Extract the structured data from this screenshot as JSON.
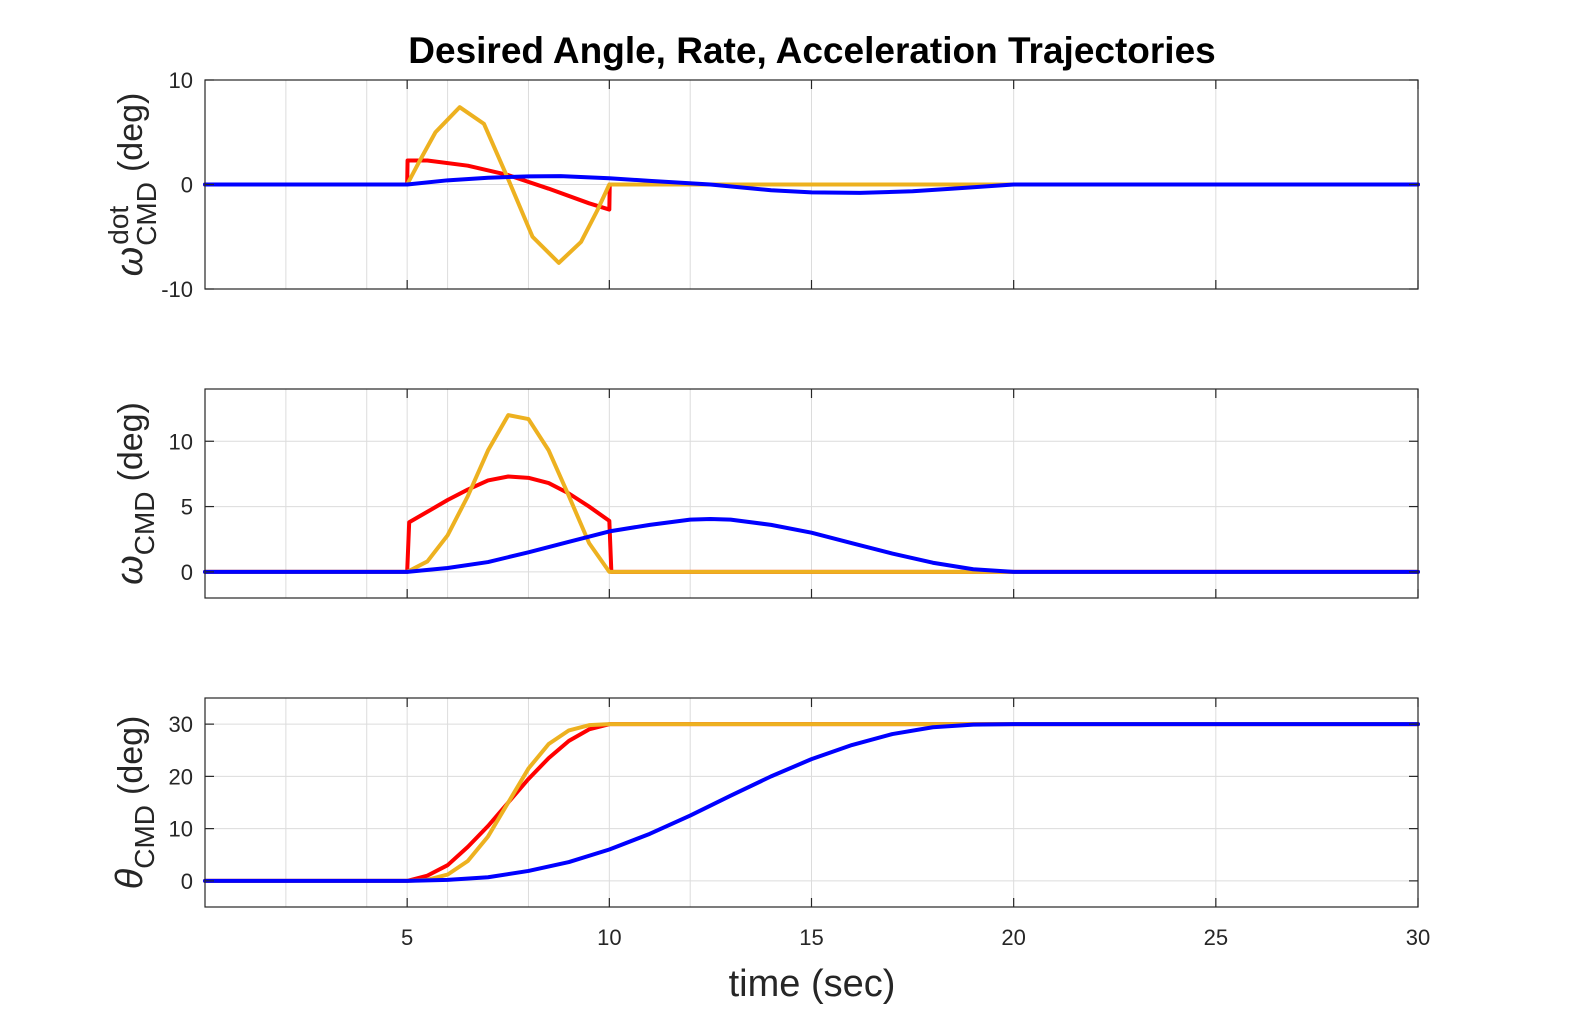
{
  "chart_data": {
    "title": "Desired Angle, Rate, Acceleration Trajectories",
    "xlabel": "time (sec)",
    "xlim": [
      0,
      30
    ],
    "xticks": [
      5,
      10,
      15,
      20,
      25,
      30
    ],
    "colors": {
      "series1": "#ff0000",
      "series2": "#edb120",
      "series3": "#0000ff"
    },
    "panels": [
      {
        "type": "line",
        "ylabel_main": "ω",
        "ylabel_sup": "dot",
        "ylabel_sub": "CMD",
        "ylabel_unit": "(deg)",
        "ylim": [
          -10,
          10
        ],
        "yticks": [
          10,
          0,
          -10
        ],
        "grid": true,
        "series": [
          {
            "name": "series1",
            "points": [
              [
                0,
                0
              ],
              [
                5,
                0
              ],
              [
                5.01,
                2.3
              ],
              [
                5.5,
                2.3
              ],
              [
                6.5,
                1.8
              ],
              [
                7.5,
                0.9
              ],
              [
                8.5,
                -0.4
              ],
              [
                9.5,
                -1.8
              ],
              [
                10,
                -2.4
              ],
              [
                10.01,
                0
              ],
              [
                30,
                0
              ]
            ]
          },
          {
            "name": "series2",
            "points": [
              [
                0,
                0
              ],
              [
                5,
                0
              ],
              [
                5.3,
                2.2
              ],
              [
                5.7,
                5.0
              ],
              [
                6.3,
                7.4
              ],
              [
                6.9,
                5.8
              ],
              [
                7.5,
                0.5
              ],
              [
                8.1,
                -5.0
              ],
              [
                8.75,
                -7.5
              ],
              [
                9.3,
                -5.5
              ],
              [
                9.7,
                -2.5
              ],
              [
                10,
                0
              ],
              [
                30,
                0
              ]
            ]
          },
          {
            "name": "series3",
            "points": [
              [
                0,
                0
              ],
              [
                5,
                0
              ],
              [
                6,
                0.4
              ],
              [
                7,
                0.65
              ],
              [
                8,
                0.78
              ],
              [
                8.8,
                0.8
              ],
              [
                10,
                0.6
              ],
              [
                11,
                0.35
              ],
              [
                12.5,
                0
              ],
              [
                14,
                -0.55
              ],
              [
                15,
                -0.75
              ],
              [
                16.2,
                -0.8
              ],
              [
                17.5,
                -0.65
              ],
              [
                18.5,
                -0.4
              ],
              [
                20,
                0
              ],
              [
                30,
                0
              ]
            ]
          }
        ]
      },
      {
        "type": "line",
        "ylabel_main": "ω",
        "ylabel_sup": "",
        "ylabel_sub": "CMD",
        "ylabel_unit": "(deg)",
        "ylim": [
          -2,
          14
        ],
        "yticks": [
          10,
          5,
          0
        ],
        "grid": true,
        "series": [
          {
            "name": "series1",
            "points": [
              [
                0,
                0
              ],
              [
                5,
                0
              ],
              [
                5.05,
                3.8
              ],
              [
                5.5,
                4.6
              ],
              [
                6,
                5.5
              ],
              [
                6.5,
                6.3
              ],
              [
                7,
                7.0
              ],
              [
                7.5,
                7.3
              ],
              [
                8,
                7.2
              ],
              [
                8.5,
                6.8
              ],
              [
                9,
                6.0
              ],
              [
                9.5,
                5.0
              ],
              [
                10,
                3.9
              ],
              [
                10.05,
                0
              ],
              [
                30,
                0
              ]
            ]
          },
          {
            "name": "series2",
            "points": [
              [
                0,
                0
              ],
              [
                5,
                0
              ],
              [
                5.5,
                0.8
              ],
              [
                6,
                2.8
              ],
              [
                6.5,
                5.8
              ],
              [
                7,
                9.3
              ],
              [
                7.5,
                12.0
              ],
              [
                8,
                11.7
              ],
              [
                8.5,
                9.3
              ],
              [
                9,
                5.8
              ],
              [
                9.5,
                2.2
              ],
              [
                10,
                0
              ],
              [
                30,
                0
              ]
            ]
          },
          {
            "name": "series3",
            "points": [
              [
                0,
                0
              ],
              [
                5,
                0
              ],
              [
                6,
                0.3
              ],
              [
                7,
                0.75
              ],
              [
                8,
                1.5
              ],
              [
                9,
                2.3
              ],
              [
                10,
                3.1
              ],
              [
                11,
                3.6
              ],
              [
                12,
                4.0
              ],
              [
                12.5,
                4.05
              ],
              [
                13,
                4.0
              ],
              [
                14,
                3.6
              ],
              [
                15,
                3.0
              ],
              [
                16,
                2.2
              ],
              [
                17,
                1.4
              ],
              [
                18,
                0.7
              ],
              [
                19,
                0.2
              ],
              [
                20,
                0
              ],
              [
                30,
                0
              ]
            ]
          }
        ]
      },
      {
        "type": "line",
        "ylabel_main": "θ",
        "ylabel_sup": "",
        "ylabel_sub": "CMD",
        "ylabel_unit": "(deg)",
        "ylim": [
          -5,
          35
        ],
        "yticks": [
          30,
          20,
          10,
          0
        ],
        "grid": true,
        "series": [
          {
            "name": "series1",
            "points": [
              [
                0,
                0
              ],
              [
                5,
                0
              ],
              [
                5.5,
                1.0
              ],
              [
                6,
                3.0
              ],
              [
                6.5,
                6.5
              ],
              [
                7,
                10.5
              ],
              [
                7.5,
                15.0
              ],
              [
                8,
                19.5
              ],
              [
                8.5,
                23.5
              ],
              [
                9,
                26.8
              ],
              [
                9.5,
                29.0
              ],
              [
                10,
                30
              ],
              [
                30,
                30
              ]
            ]
          },
          {
            "name": "series2",
            "points": [
              [
                0,
                0
              ],
              [
                5,
                0
              ],
              [
                5.5,
                0.2
              ],
              [
                6,
                1.2
              ],
              [
                6.5,
                3.8
              ],
              [
                7,
                8.5
              ],
              [
                7.5,
                15.0
              ],
              [
                8,
                21.5
              ],
              [
                8.5,
                26.2
              ],
              [
                9,
                28.8
              ],
              [
                9.5,
                29.8
              ],
              [
                10,
                30
              ],
              [
                30,
                30
              ]
            ]
          },
          {
            "name": "series3",
            "points": [
              [
                0,
                0
              ],
              [
                5,
                0
              ],
              [
                6,
                0.2
              ],
              [
                7,
                0.7
              ],
              [
                8,
                1.9
              ],
              [
                9,
                3.6
              ],
              [
                10,
                6.0
              ],
              [
                11,
                9.0
              ],
              [
                12,
                12.5
              ],
              [
                13,
                16.3
              ],
              [
                14,
                20.0
              ],
              [
                15,
                23.3
              ],
              [
                16,
                26.0
              ],
              [
                17,
                28.1
              ],
              [
                18,
                29.4
              ],
              [
                19,
                29.9
              ],
              [
                20,
                30
              ],
              [
                30,
                30
              ]
            ]
          }
        ]
      }
    ]
  }
}
